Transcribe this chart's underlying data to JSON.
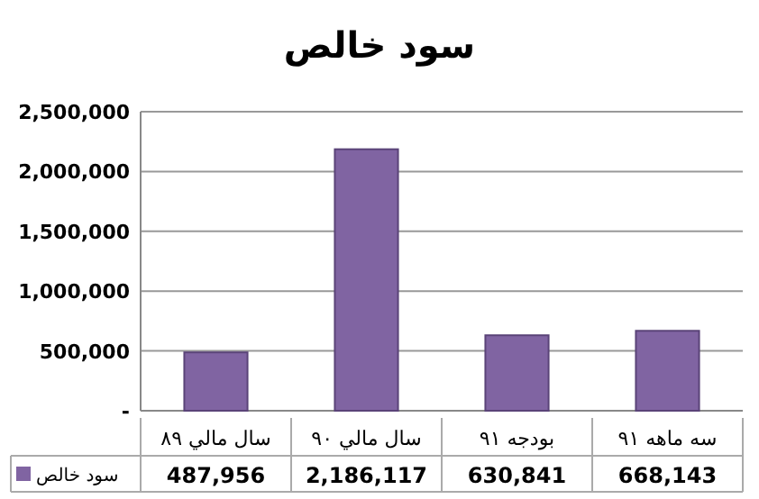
{
  "chart_data": {
    "type": "bar",
    "title": "سود خالص",
    "categories": [
      "سال مالي ٨٩",
      "سال مالي ٩٠",
      "بودجه ٩١",
      "سه ماهه ٩١"
    ],
    "series": [
      {
        "name": "سود خالص",
        "color": "#8064a2",
        "values": [
          487956,
          2186117,
          630841,
          668143
        ],
        "value_labels": [
          "487,956",
          "2,186,117",
          "630,841",
          "668,143"
        ]
      }
    ],
    "ylim": [
      0,
      2500000
    ],
    "yticks": [
      {
        "value": 0,
        "label": "-"
      },
      {
        "value": 500000,
        "label": "500,000"
      },
      {
        "value": 1000000,
        "label": "1,000,000"
      },
      {
        "value": 1500000,
        "label": "1,500,000"
      },
      {
        "value": 2000000,
        "label": "2,000,000"
      },
      {
        "value": 2500000,
        "label": "2,500,000"
      }
    ],
    "grid": "y",
    "legend": "bottom left"
  }
}
